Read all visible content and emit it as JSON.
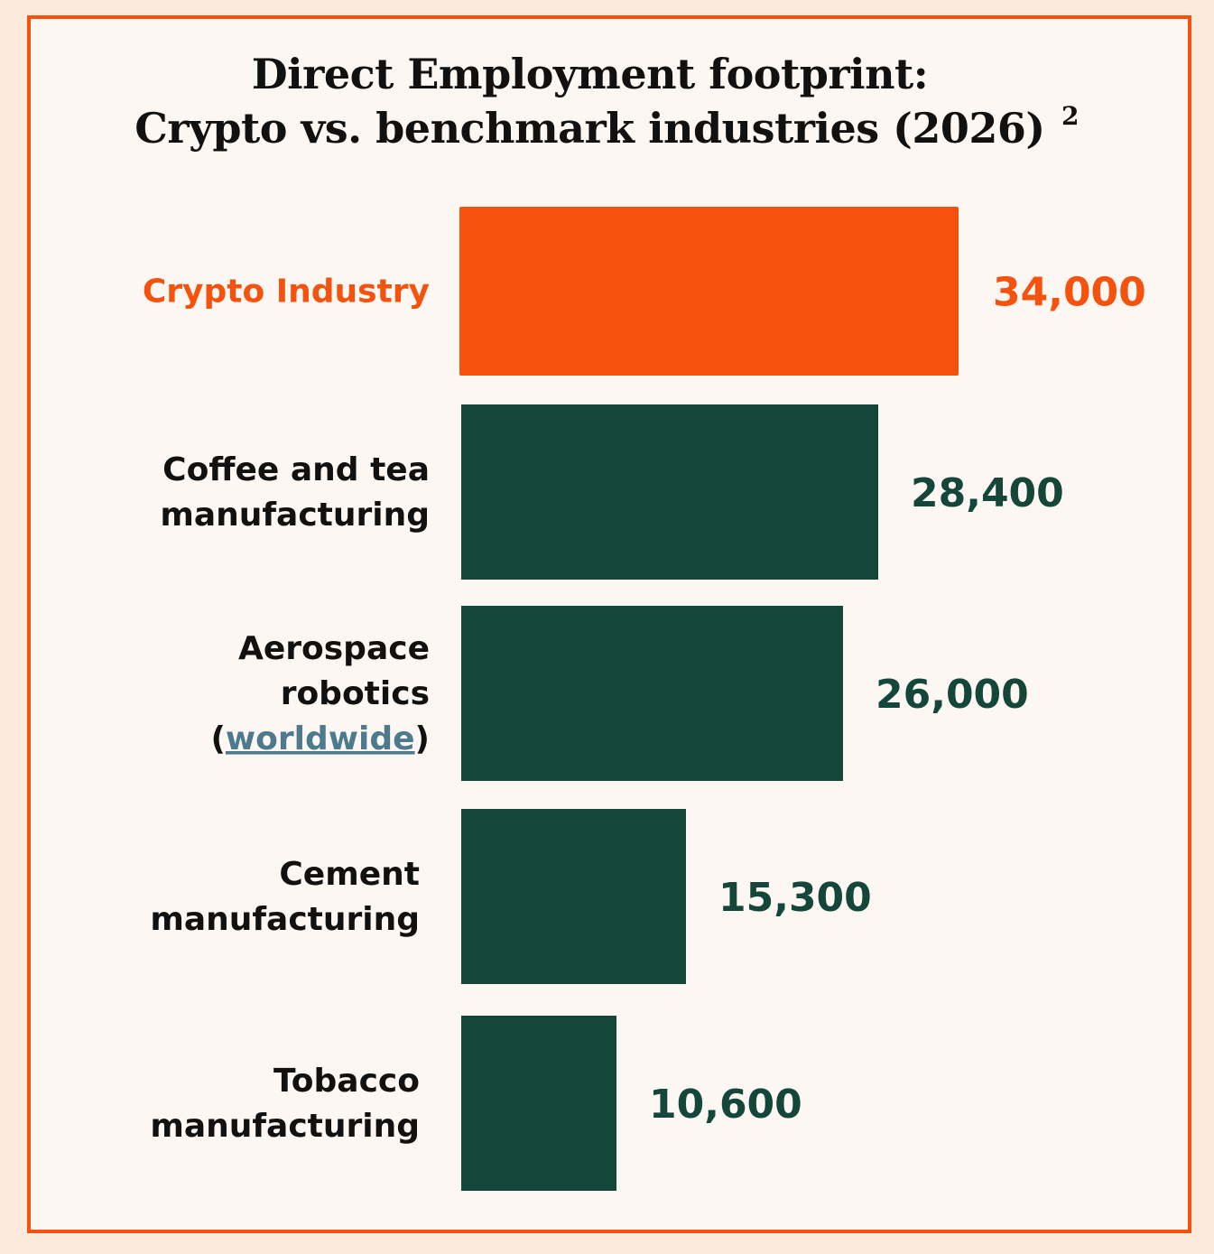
{
  "colors": {
    "frame": "#f5520d",
    "highlight": "#f5520d",
    "bar": "#14463a",
    "value_text": "#14463a",
    "label_text": "#111111",
    "link": "#4d7a8c",
    "background": "#fdf7f3"
  },
  "chart_data": {
    "type": "bar",
    "orientation": "horizontal",
    "title": "Direct Employment footprint:",
    "subtitle": "Crypto vs. benchmark industries (2026)",
    "footnote_marker": "2",
    "categories": [
      "Crypto Industry",
      "Coffee and tea manufacturing",
      "Aerospace robotics (worldwide)",
      "Cement manufacturing",
      "Tobacco manufacturing"
    ],
    "category_lines": [
      [
        "Crypto Industry"
      ],
      [
        "Coffee and tea",
        "manufacturing"
      ],
      [
        "Aerospace",
        "robotics",
        "(worldwide)"
      ],
      [
        "Cement",
        "manufacturing"
      ],
      [
        "Tobacco",
        "manufacturing"
      ]
    ],
    "link_text": "worldwide",
    "values": [
      34000,
      28400,
      26000,
      15300,
      10600
    ],
    "value_labels": [
      "34,000",
      "28,400",
      "26,000",
      "15,300",
      "10,600"
    ],
    "highlighted_category": "Crypto Industry",
    "grid": false,
    "legend": "none"
  }
}
